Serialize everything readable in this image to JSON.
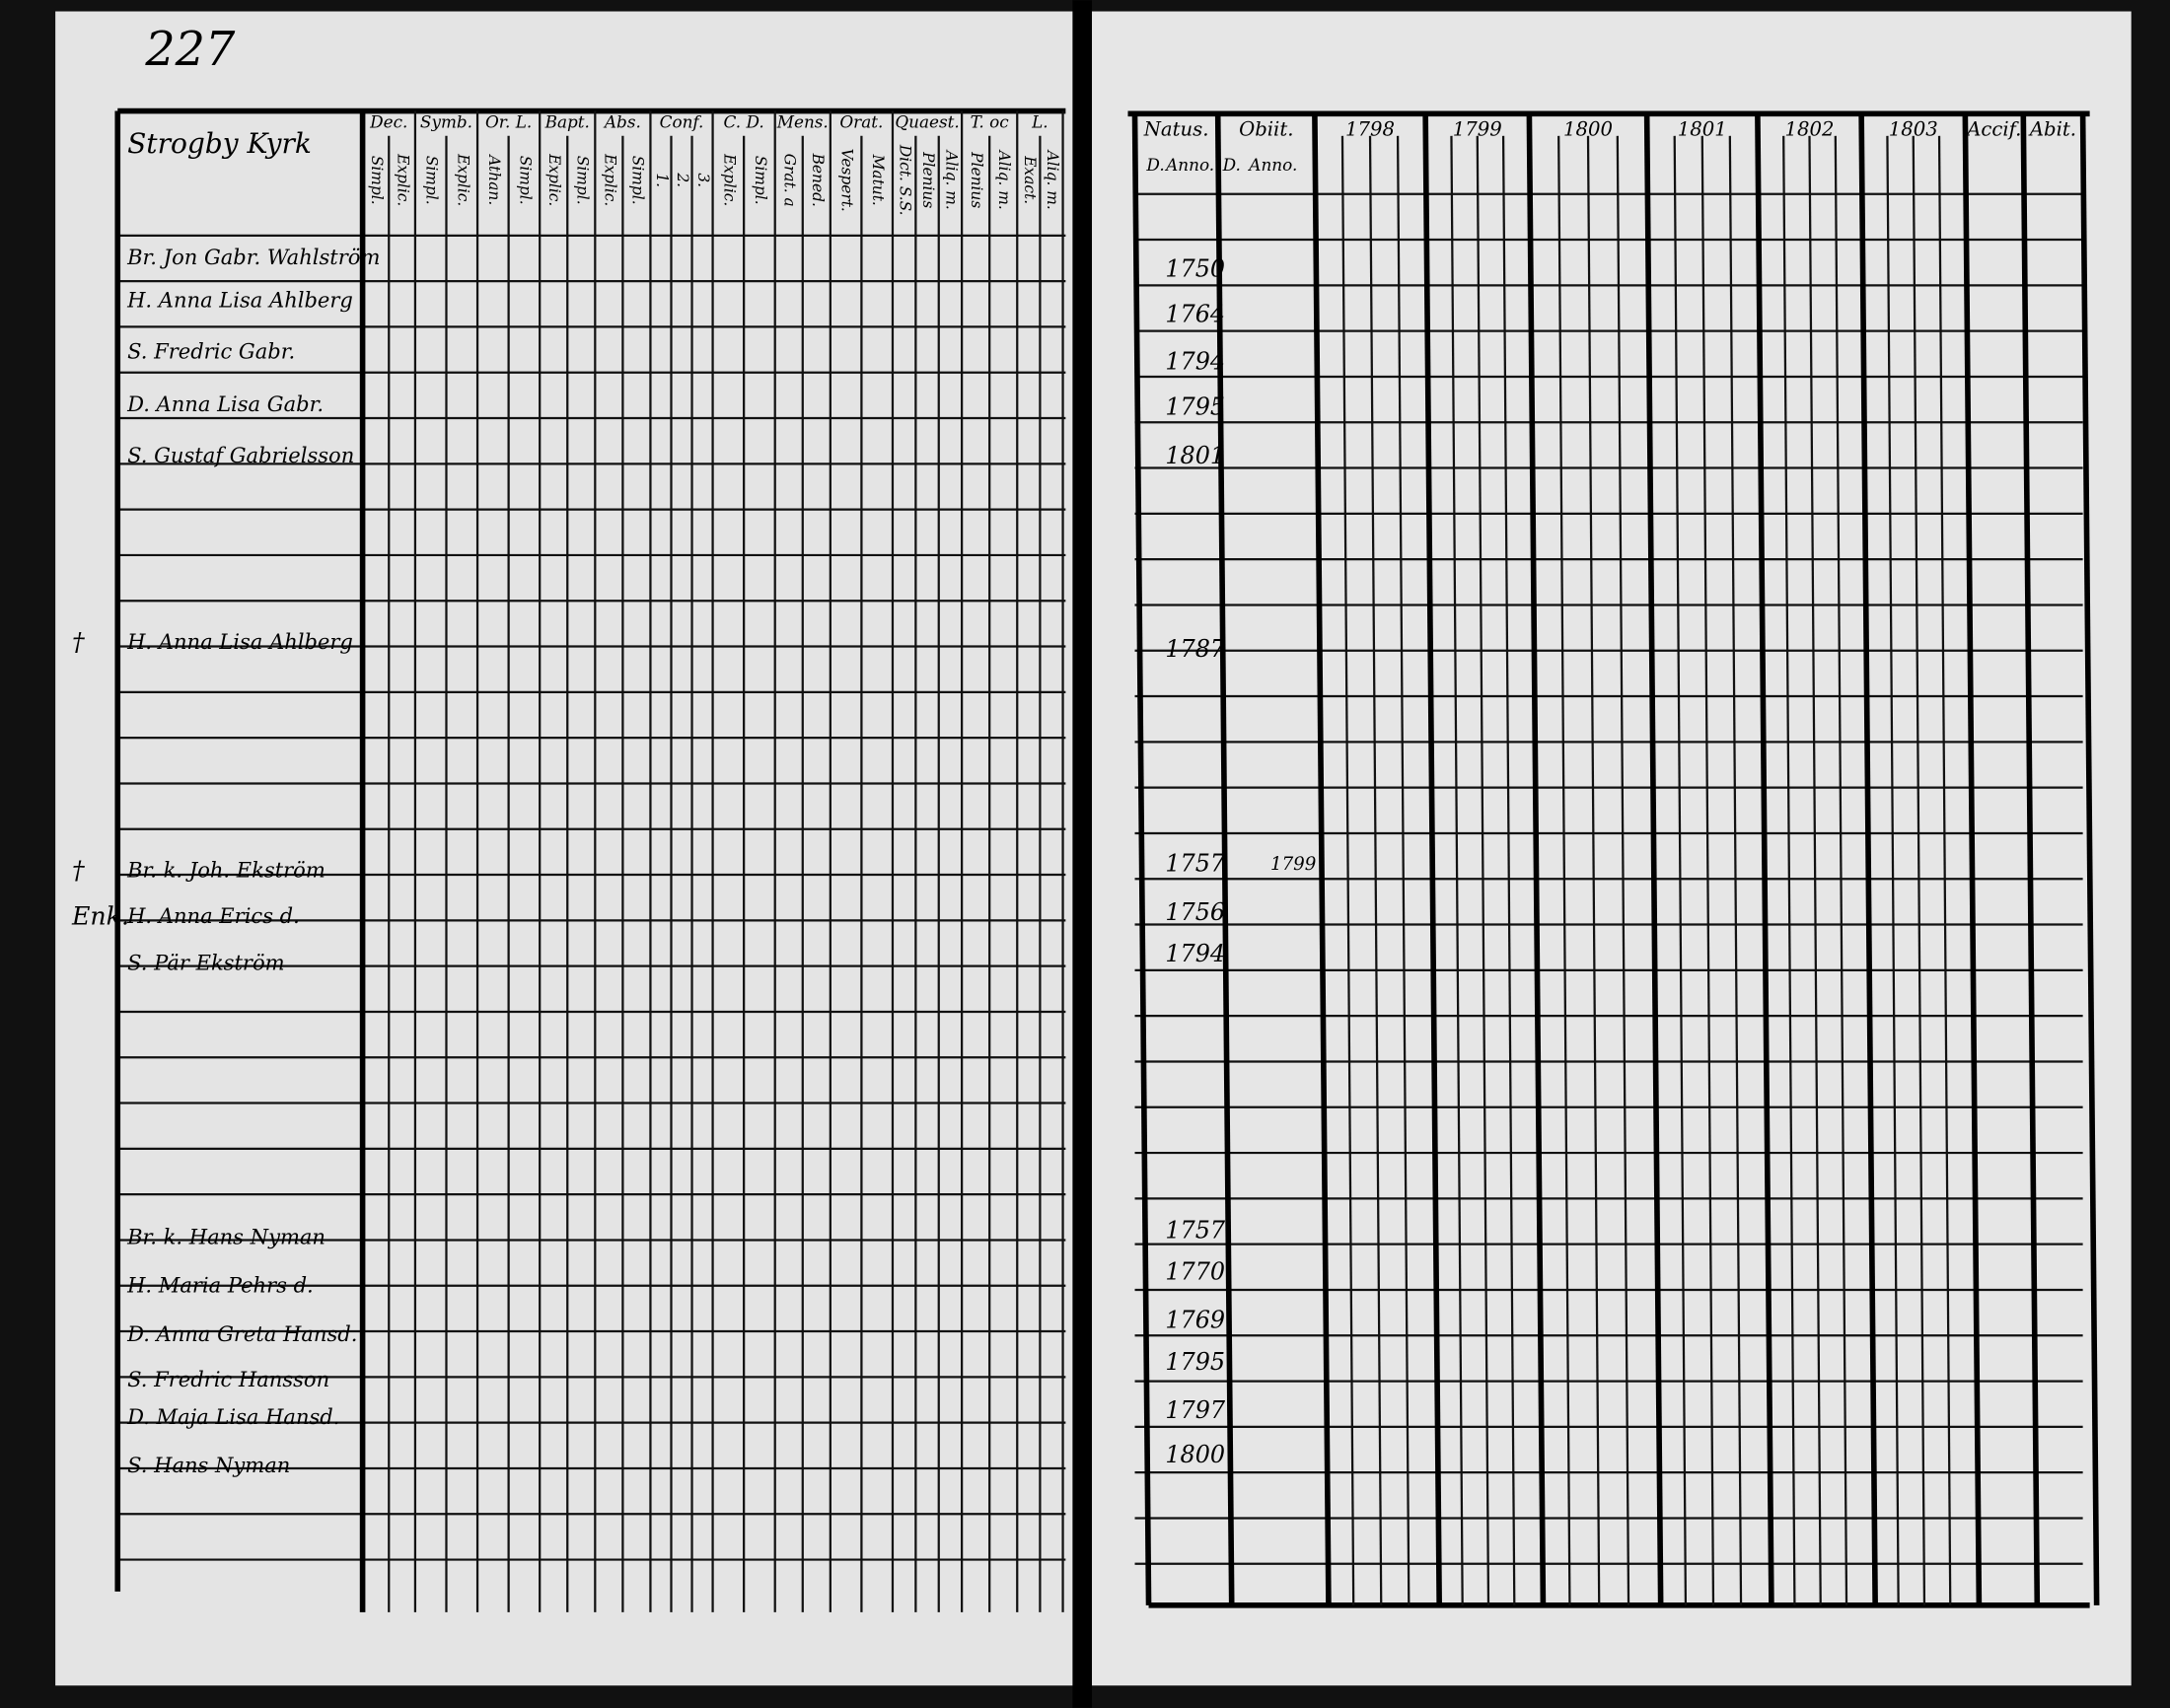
{
  "header": {
    "page_number": "227",
    "parish": "Strogby Kyrk"
  },
  "left_page": {
    "columns": [
      {
        "title": "Dec.",
        "subs": [
          "Simpl.",
          "Explic."
        ]
      },
      {
        "title": "Symb.",
        "subs": [
          "Simpl.",
          "Explic."
        ]
      },
      {
        "title": "Or. L.",
        "subs": [
          "Athan.",
          "Simpl."
        ]
      },
      {
        "title": "Bapt.",
        "subs": [
          "Explic.",
          "Simpl."
        ]
      },
      {
        "title": "Abs.",
        "subs": [
          "Explic.",
          "Simpl."
        ]
      },
      {
        "title": "Conf.",
        "subs": [
          "1.",
          "2.",
          "3."
        ]
      },
      {
        "title": "C. D.",
        "subs": [
          "Explic.",
          "Simpl."
        ]
      },
      {
        "title": "Mens.",
        "subs": [
          "Grat. a",
          "Bened."
        ]
      },
      {
        "title": "Orat.",
        "subs": [
          "Vespert.",
          "Matut."
        ]
      },
      {
        "title": "Quaest.",
        "subs": [
          "Dict. S.S.",
          "Plenius",
          "Aliq. m."
        ]
      },
      {
        "title": "T. oc",
        "subs": [
          "Plenius",
          "Aliq. m."
        ]
      },
      {
        "title": "L.",
        "subs": [
          "Exact.",
          "Aliq. m."
        ]
      }
    ],
    "rows": [
      {
        "name": "Br. Jon Gabr. Wahlström"
      },
      {
        "name": "H. Anna Lisa Ahlberg"
      },
      {
        "name": "S. Fredric Gabr."
      },
      {
        "name": "D. Anna Lisa Gabr."
      },
      {
        "name": "S. Gustaf Gabrielsson"
      },
      {
        "name": "H. Anna Lisa Ahlberg",
        "margin": "†"
      },
      {
        "name": "Br. k. Joh. Ekström",
        "margin": "†"
      },
      {
        "name": "H. Anna Erics d.",
        "margin": "Enk."
      },
      {
        "name": "S. Pär Ekström"
      },
      {
        "name": "Br. k. Hans Nyman"
      },
      {
        "name": "H. Maria Pehrs d."
      },
      {
        "name": "D. Anna Greta Hansd."
      },
      {
        "name": "S. Fredric Hansson"
      },
      {
        "name": "D. Maja Lisa Hansd."
      },
      {
        "name": "S. Hans Nyman"
      }
    ]
  },
  "right_page": {
    "columns": [
      "Natus.",
      "Obiit.",
      "1798",
      "1799",
      "1800",
      "1801",
      "1802",
      "1803",
      "Accif.",
      "Abit."
    ],
    "sub_columns": [
      "D.",
      "Anno.",
      "D.",
      "Anno."
    ],
    "rows": [
      {
        "born": "1750"
      },
      {
        "born": "1764"
      },
      {
        "born": "1794"
      },
      {
        "born": "1795"
      },
      {
        "born": "1801"
      },
      {
        "born": "1787"
      },
      {
        "born": "1757",
        "died": "1799"
      },
      {
        "born": "1756"
      },
      {
        "born": "1794"
      },
      {
        "born": "1757"
      },
      {
        "born": "1770"
      },
      {
        "born": "1769"
      },
      {
        "born": "1795"
      },
      {
        "born": "1797"
      },
      {
        "born": "1800"
      }
    ]
  }
}
